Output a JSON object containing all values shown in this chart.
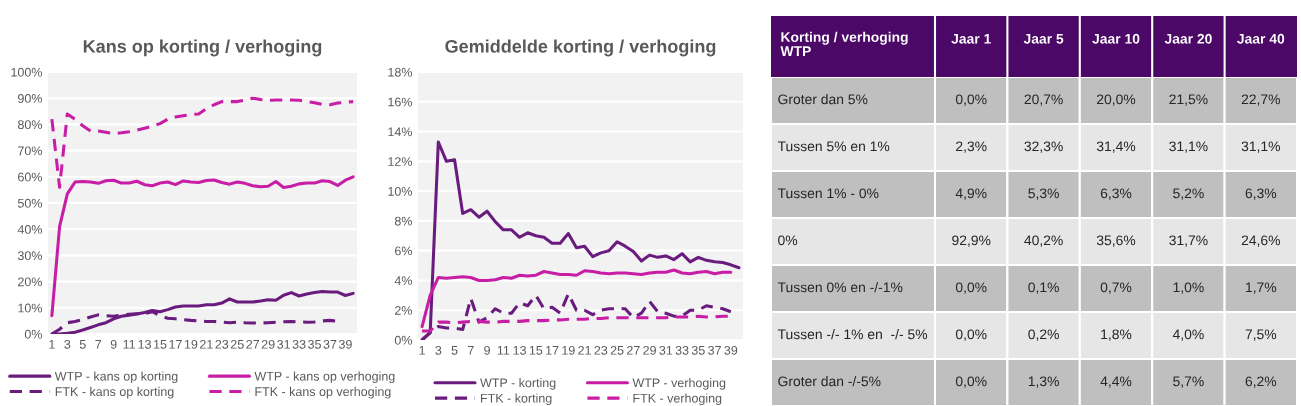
{
  "chart_data": [
    {
      "type": "line",
      "title": "Kans op korting / verhoging",
      "x": [
        1,
        2,
        3,
        4,
        5,
        6,
        7,
        8,
        9,
        10,
        11,
        12,
        13,
        14,
        15,
        16,
        17,
        18,
        19,
        20,
        21,
        22,
        23,
        24,
        25,
        26,
        27,
        28,
        29,
        30,
        31,
        32,
        33,
        34,
        35,
        36,
        37,
        38,
        39,
        40
      ],
      "xlim": [
        0.5,
        40.5
      ],
      "xticks": [
        1,
        3,
        5,
        7,
        9,
        11,
        13,
        15,
        17,
        19,
        21,
        23,
        25,
        27,
        29,
        31,
        33,
        35,
        37,
        39
      ],
      "ylim": [
        0,
        100
      ],
      "yticks": [
        {
          "value": 0,
          "label": "0%"
        },
        {
          "value": 10,
          "label": "10%"
        },
        {
          "value": 20,
          "label": "20%"
        },
        {
          "value": 30,
          "label": "30%"
        },
        {
          "value": 40,
          "label": "40%"
        },
        {
          "value": 50,
          "label": "50%"
        },
        {
          "value": 60,
          "label": "60%"
        },
        {
          "value": 70,
          "label": "70%"
        },
        {
          "value": 80,
          "label": "80%"
        },
        {
          "value": 90,
          "label": "90%"
        },
        {
          "value": 100,
          "label": "100%"
        }
      ],
      "grid": "y",
      "legend": "bottom",
      "marker": "none",
      "series": [
        {
          "name": "WTP - kans op korting",
          "color": "#6a1b7e",
          "line_style": "solid",
          "values": [
            0,
            0,
            0.3,
            0.7,
            1.5,
            2.5,
            3.5,
            4.3,
            5.8,
            6.8,
            7.2,
            7.6,
            8.2,
            9.0,
            8.5,
            9.3,
            10.3,
            10.7,
            10.7,
            10.7,
            11.2,
            11.2,
            11.8,
            13.4,
            12.2,
            12.2,
            12.2,
            12.6,
            13.1,
            12.9,
            14.8,
            15.8,
            14.5,
            15.3,
            15.8,
            16.2,
            16.0,
            16.0,
            14.7,
            15.5
          ]
        },
        {
          "name": "WTP - kans op verhoging",
          "color": "#c81ea6",
          "line_style": "solid",
          "values": [
            7,
            41,
            53.5,
            58,
            58.2,
            58,
            57.5,
            58.5,
            58.7,
            57.6,
            57.6,
            58.3,
            57,
            56.6,
            57.6,
            58,
            57,
            58.4,
            58,
            57.8,
            58.6,
            58.8,
            57.8,
            57.2,
            58,
            57.5,
            56.6,
            56.2,
            56.4,
            58.2,
            55.9,
            56.4,
            57.3,
            57.6,
            57.6,
            58.5,
            58.2,
            56.7,
            58.7,
            60
          ]
        },
        {
          "name": "FTK - kans op korting",
          "color": "#6a1b7e",
          "line_style": "dashed",
          "values": [
            0,
            1.8,
            4.3,
            4.8,
            5.5,
            6.5,
            7.3,
            7,
            6.8,
            7.2,
            7.5,
            7.7,
            7.7,
            8.5,
            7,
            6,
            5.8,
            5.5,
            5.2,
            5,
            4.8,
            4.8,
            4.5,
            4.3,
            4.5,
            4.3,
            4.2,
            4.2,
            4.3,
            4.5,
            4.7,
            4.8,
            4.6,
            4.5,
            4.6,
            5,
            5.2,
            4.8,
            null,
            null
          ]
        },
        {
          "name": "FTK - kans op verhoging",
          "color": "#c81ea6",
          "line_style": "dashed",
          "values": [
            82,
            56,
            84,
            82,
            79.5,
            77.5,
            77.5,
            77,
            76.5,
            76.8,
            77.2,
            77.8,
            78.5,
            79.3,
            80.3,
            82,
            82.8,
            83.3,
            83.8,
            84,
            86,
            87.5,
            88.7,
            88.7,
            88.7,
            89.3,
            90,
            89.5,
            89.2,
            89.3,
            89.3,
            89.3,
            89.2,
            88.7,
            88.3,
            87.6,
            87.5,
            88.2,
            88.4,
            88.7
          ]
        }
      ]
    },
    {
      "type": "line",
      "title": "Gemiddelde korting / verhoging",
      "x": [
        1,
        2,
        3,
        4,
        5,
        6,
        7,
        8,
        9,
        10,
        11,
        12,
        13,
        14,
        15,
        16,
        17,
        18,
        19,
        20,
        21,
        22,
        23,
        24,
        25,
        26,
        27,
        28,
        29,
        30,
        31,
        32,
        33,
        34,
        35,
        36,
        37,
        38,
        39,
        40
      ],
      "xlim": [
        0.5,
        40.5
      ],
      "xticks": [
        1,
        3,
        5,
        7,
        9,
        11,
        13,
        15,
        17,
        19,
        21,
        23,
        25,
        27,
        29,
        31,
        33,
        35,
        37,
        39
      ],
      "ylim": [
        0,
        18
      ],
      "yticks": [
        {
          "value": 0,
          "label": "0%"
        },
        {
          "value": 2,
          "label": "2%"
        },
        {
          "value": 4,
          "label": "4%"
        },
        {
          "value": 6,
          "label": "6%"
        },
        {
          "value": 8,
          "label": "8%"
        },
        {
          "value": 10,
          "label": "10%"
        },
        {
          "value": 12,
          "label": "12%"
        },
        {
          "value": 14,
          "label": "14%"
        },
        {
          "value": 16,
          "label": "16%"
        },
        {
          "value": 18,
          "label": "18%"
        }
      ],
      "grid": "y",
      "legend": "bottom",
      "marker": "none",
      "series": [
        {
          "name": "WTP - korting",
          "color": "#6a1b7e",
          "line_style": "solid",
          "values": [
            0,
            0.5,
            13.3,
            12.0,
            12.1,
            8.5,
            8.75,
            8.25,
            8.65,
            7.95,
            7.4,
            7.4,
            6.9,
            7.2,
            7.0,
            6.9,
            6.5,
            6.5,
            7.15,
            6.2,
            6.3,
            5.6,
            5.85,
            6.0,
            6.6,
            6.3,
            5.95,
            5.3,
            5.7,
            5.55,
            5.65,
            5.4,
            5.8,
            5.25,
            5.55,
            5.35,
            5.25,
            5.2,
            5.05,
            4.85
          ]
        },
        {
          "name": "WTP - verhoging",
          "color": "#c81ea6",
          "line_style": "solid",
          "values": [
            0.9,
            3.0,
            4.2,
            4.15,
            4.2,
            4.25,
            4.2,
            4.0,
            4.0,
            4.05,
            4.2,
            4.15,
            4.35,
            4.3,
            4.35,
            4.6,
            4.5,
            4.4,
            4.4,
            4.35,
            4.65,
            4.6,
            4.5,
            4.45,
            4.5,
            4.5,
            4.45,
            4.4,
            4.5,
            4.55,
            4.55,
            4.7,
            4.5,
            4.45,
            4.55,
            4.6,
            4.45,
            4.55,
            4.55,
            null
          ]
        },
        {
          "name": "FTK - korting",
          "color": "#6a1b7e",
          "line_style": "dashed",
          "values": [
            0,
            0.5,
            0.9,
            0.8,
            0.8,
            0.7,
            2.8,
            1.2,
            1.5,
            2.1,
            1.8,
            1.8,
            2.5,
            2.3,
            3.0,
            2.1,
            2.2,
            1.8,
            3.1,
            2.0,
            2.0,
            1.7,
            2.0,
            2.1,
            2.1,
            2.1,
            1.5,
            1.8,
            2.6,
            1.9,
            1.8,
            1.6,
            1.6,
            2.0,
            2.0,
            2.3,
            2.2,
            2.1,
            1.9,
            null
          ]
        },
        {
          "name": "FTK - verhoging",
          "color": "#c81ea6",
          "line_style": "dashed",
          "values": [
            0.6,
            0.6,
            1.2,
            1.2,
            1.15,
            1.2,
            1.25,
            1.25,
            1.2,
            1.2,
            1.25,
            1.25,
            1.25,
            1.3,
            1.3,
            1.3,
            1.35,
            1.35,
            1.4,
            1.4,
            1.4,
            1.45,
            1.45,
            1.5,
            1.5,
            1.5,
            1.5,
            1.5,
            1.5,
            1.5,
            1.5,
            1.55,
            1.55,
            1.55,
            1.6,
            1.55,
            1.55,
            1.6,
            1.6,
            null
          ]
        }
      ]
    },
    {
      "type": "other",
      "title": "Korting / verhoging\nWTP",
      "categories": [
        "Jaar 1",
        "Jaar 5",
        "Jaar 10",
        "Jaar 20",
        "Jaar 40"
      ],
      "y_categories": [
        "Groter dan 5%",
        "Tussen 5% en 1%",
        "Tussen 1% - 0%",
        "0%",
        "Tussen 0% en -/-1%",
        "Tussen -/- 1% en  -/- 5%",
        "Groter dan -/-5%"
      ],
      "cell_labels": [
        [
          "0,0%",
          "20,7%",
          "20,0%",
          "21,5%",
          "22,7%"
        ],
        [
          "2,3%",
          "32,3%",
          "31,4%",
          "31,1%",
          "31,1%"
        ],
        [
          "4,9%",
          "5,3%",
          "6,3%",
          "5,2%",
          "6,3%"
        ],
        [
          "92,9%",
          "40,2%",
          "35,6%",
          "31,7%",
          "24,6%"
        ],
        [
          "0,0%",
          "0,1%",
          "0,7%",
          "1,0%",
          "1,7%"
        ],
        [
          "0,0%",
          "0,2%",
          "1,8%",
          "4,0%",
          "7,5%"
        ],
        [
          "0,0%",
          "1,3%",
          "4,4%",
          "5,7%",
          "6,2%"
        ]
      ]
    }
  ]
}
